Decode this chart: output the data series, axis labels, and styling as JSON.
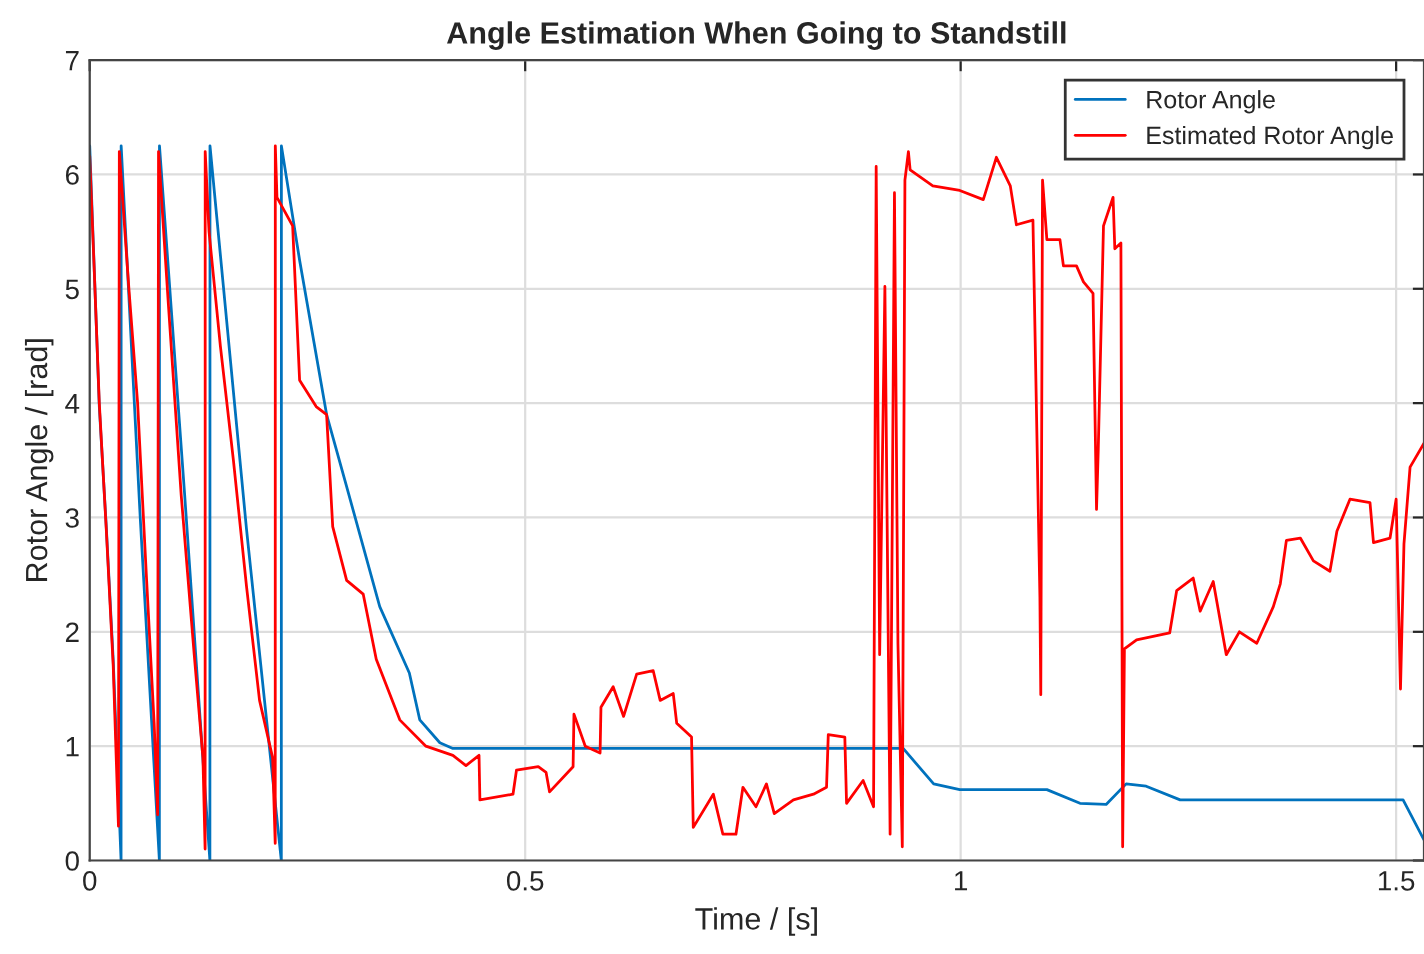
{
  "chart_data": {
    "type": "line",
    "title": "Angle Estimation When Going to Standstill",
    "xlabel": "Time / [s]",
    "ylabel": "Rotor Angle / [rad]",
    "xlim": [
      0,
      1.532
    ],
    "ylim": [
      0,
      7
    ],
    "xticks": [
      0,
      0.5,
      1,
      1.5
    ],
    "yticks": [
      0,
      1,
      2,
      3,
      4,
      5,
      6,
      7
    ],
    "grid": true,
    "legend": "top right",
    "line_style": "solid",
    "marker": "none",
    "series": [
      {
        "name": "Rotor Angle",
        "color": "#0072bd",
        "x": [
          0,
          0.011,
          0.019,
          0.027,
          0.036,
          0.0361,
          0.058,
          0.08,
          0.0801,
          0.109,
          0.138,
          0.1381,
          0.18,
          0.22,
          0.2201,
          0.241,
          0.272,
          0.295,
          0.333,
          0.367,
          0.379,
          0.402,
          0.417,
          0.934,
          0.969,
          0.999,
          1.099,
          1.137,
          1.167,
          1.19,
          1.213,
          1.252,
          1.508,
          1.532
        ],
        "values": [
          6.25,
          3.97,
          2.92,
          1.75,
          0,
          6.25,
          3.0,
          0,
          6.25,
          3.2,
          0,
          6.25,
          2.9,
          0,
          6.25,
          5.25,
          3.9,
          3.27,
          2.22,
          1.64,
          1.23,
          1.03,
          0.98,
          0.98,
          0.67,
          0.62,
          0.62,
          0.5,
          0.49,
          0.67,
          0.65,
          0.53,
          0.53,
          0.18
        ]
      },
      {
        "name": "Estimated Rotor Angle",
        "color": "#ff0000",
        "x": [
          0,
          0.005,
          0.011,
          0.019,
          0.027,
          0.033,
          0.034,
          0.045,
          0.055,
          0.065,
          0.074,
          0.078,
          0.079,
          0.09,
          0.105,
          0.12,
          0.13,
          0.1325,
          0.1326,
          0.137,
          0.15,
          0.165,
          0.18,
          0.195,
          0.21,
          0.213,
          0.2131,
          0.215,
          0.233,
          0.241,
          0.26,
          0.272,
          0.279,
          0.295,
          0.314,
          0.329,
          0.356,
          0.386,
          0.417,
          0.432,
          0.447,
          0.448,
          0.486,
          0.49,
          0.515,
          0.524,
          0.528,
          0.555,
          0.556,
          0.569,
          0.586,
          0.587,
          0.601,
          0.613,
          0.628,
          0.647,
          0.655,
          0.67,
          0.674,
          0.691,
          0.693,
          0.716,
          0.727,
          0.742,
          0.75,
          0.765,
          0.777,
          0.786,
          0.808,
          0.831,
          0.846,
          0.848,
          0.867,
          0.869,
          0.888,
          0.9,
          0.903,
          0.907,
          0.913,
          0.919,
          0.924,
          0.928,
          0.933,
          0.936,
          0.94,
          0.942,
          0.968,
          0.999,
          1.026,
          1.041,
          1.057,
          1.064,
          1.083,
          1.091,
          1.092,
          1.094,
          1.099,
          1.114,
          1.118,
          1.133,
          1.141,
          1.152,
          1.156,
          1.158,
          1.164,
          1.175,
          1.177,
          1.184,
          1.186,
          1.188,
          1.202,
          1.24,
          1.248,
          1.267,
          1.275,
          1.29,
          1.305,
          1.32,
          1.34,
          1.359,
          1.367,
          1.374,
          1.39,
          1.405,
          1.424,
          1.432,
          1.447,
          1.47,
          1.474,
          1.493,
          1.5,
          1.505,
          1.509,
          1.516,
          1.532
        ],
        "values": [
          6.16,
          5.2,
          4.0,
          2.9,
          1.7,
          0.3,
          6.2,
          5.0,
          4.0,
          2.5,
          1.2,
          0.4,
          6.2,
          4.9,
          3.2,
          1.8,
          0.9,
          0.1,
          6.2,
          5.5,
          4.5,
          3.5,
          2.4,
          1.4,
          0.9,
          0.15,
          6.25,
          5.8,
          5.55,
          4.2,
          3.97,
          3.9,
          2.92,
          2.45,
          2.33,
          1.76,
          1.23,
          1.0,
          0.92,
          0.83,
          0.92,
          0.53,
          0.58,
          0.79,
          0.82,
          0.77,
          0.6,
          0.82,
          1.28,
          1.0,
          0.94,
          1.34,
          1.52,
          1.26,
          1.63,
          1.66,
          1.4,
          1.46,
          1.2,
          1.08,
          0.29,
          0.58,
          0.23,
          0.23,
          0.64,
          0.47,
          0.67,
          0.41,
          0.53,
          0.58,
          0.64,
          1.1,
          1.08,
          0.5,
          0.7,
          0.47,
          6.07,
          1.8,
          5.02,
          0.23,
          5.84,
          1.9,
          0.12,
          5.95,
          6.2,
          6.04,
          5.9,
          5.86,
          5.78,
          6.15,
          5.9,
          5.56,
          5.6,
          2.3,
          1.45,
          5.95,
          5.43,
          5.43,
          5.2,
          5.2,
          5.06,
          4.96,
          3.07,
          3.6,
          5.55,
          5.8,
          5.35,
          5.4,
          0.12,
          1.85,
          1.93,
          1.99,
          2.36,
          2.47,
          2.18,
          2.44,
          1.8,
          2.0,
          1.9,
          2.22,
          2.42,
          2.8,
          2.82,
          2.62,
          2.53,
          2.88,
          3.16,
          3.13,
          2.78,
          2.82,
          3.16,
          1.5,
          2.77,
          3.44,
          3.65
        ]
      }
    ]
  }
}
